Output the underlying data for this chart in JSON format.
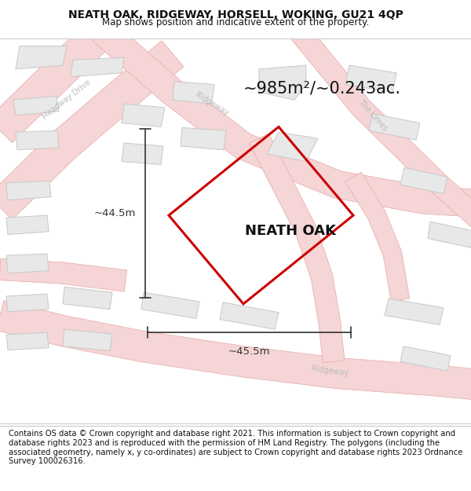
{
  "title": "NEATH OAK, RIDGEWAY, HORSELL, WOKING, GU21 4QP",
  "subtitle": "Map shows position and indicative extent of the property.",
  "property_label": "NEATH OAK",
  "area_text": "~985m²/~0.243ac.",
  "dim1_text": "~44.5m",
  "dim2_text": "~45.5m",
  "footer_text": "Contains OS data © Crown copyright and database right 2021. This information is subject to Crown copyright and database rights 2023 and is reproduced with the permission of HM Land Registry. The polygons (including the associated geometry, namely x, y co-ordinates) are subject to Crown copyright and database rights 2023 Ordnance Survey 100026316.",
  "bg_color": "#ffffff",
  "map_bg_color": "#f8f8f8",
  "road_fill": "#f5d5d5",
  "road_stroke": "#e8a8a8",
  "road_center": "#f0c0c0",
  "building_fill": "#e8e8e8",
  "building_stroke": "#c8c8c8",
  "property_stroke": "#cc0000",
  "dim_color": "#333333",
  "text_color": "#111111",
  "road_label_color": "#bbbbbb",
  "title_fontsize": 10,
  "subtitle_fontsize": 8.5,
  "area_fontsize": 15,
  "label_fontsize": 13,
  "dim_fontsize": 9.5,
  "footer_fontsize": 7.2
}
